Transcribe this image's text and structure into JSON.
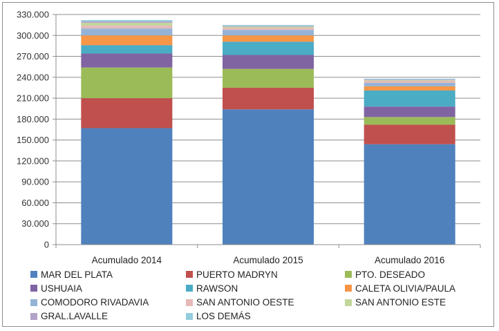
{
  "chart_data": {
    "type": "bar",
    "stacked": true,
    "title": "",
    "xlabel": "",
    "ylabel": "",
    "ylim": [
      0,
      330000
    ],
    "yticks": [
      0,
      30000,
      60000,
      90000,
      120000,
      150000,
      180000,
      210000,
      240000,
      270000,
      300000,
      330000
    ],
    "ytick_labels": [
      "0",
      "30.000",
      "60.000",
      "90.000",
      "120.000",
      "150.000",
      "180.000",
      "210.000",
      "240.000",
      "270.000",
      "300.000",
      "330.000"
    ],
    "categories": [
      "Acumulado 2014",
      "Acumulado 2015",
      "Acumulado 2016"
    ],
    "grid": true,
    "legend_position": "bottom",
    "series": [
      {
        "name": "MAR DEL PLATA",
        "color": "#4F81BD",
        "values": [
          167000,
          194000,
          144000
        ]
      },
      {
        "name": "PUERTO MADRYN",
        "color": "#C0504D",
        "values": [
          43000,
          31000,
          28000
        ]
      },
      {
        "name": "PTO. DESEADO",
        "color": "#9BBB59",
        "values": [
          44000,
          27000,
          11000
        ]
      },
      {
        "name": "USHUAIA",
        "color": "#8064A2",
        "values": [
          20000,
          20000,
          15000
        ]
      },
      {
        "name": "RAWSON",
        "color": "#4BACC6",
        "values": [
          12000,
          19000,
          23000
        ]
      },
      {
        "name": "CALETA OLIVIA/PAULA",
        "color": "#F79646",
        "values": [
          14000,
          9000,
          6000
        ]
      },
      {
        "name": "COMODORO RIVADAVIA",
        "color": "#95B3D7",
        "values": [
          10000,
          8000,
          5000
        ]
      },
      {
        "name": "SAN ANTONIO OESTE",
        "color": "#E6B9B8",
        "values": [
          4000,
          3000,
          3000
        ]
      },
      {
        "name": "SAN ANTONIO ESTE",
        "color": "#C3D69B",
        "values": [
          4000,
          1500,
          1000
        ]
      },
      {
        "name": "GRAL.LAVALLE",
        "color": "#B3A2C7",
        "values": [
          2000,
          1000,
          1000
        ]
      },
      {
        "name": "LOS DEMÁS",
        "color": "#93CDDD",
        "values": [
          2000,
          1500,
          1000
        ]
      }
    ]
  }
}
